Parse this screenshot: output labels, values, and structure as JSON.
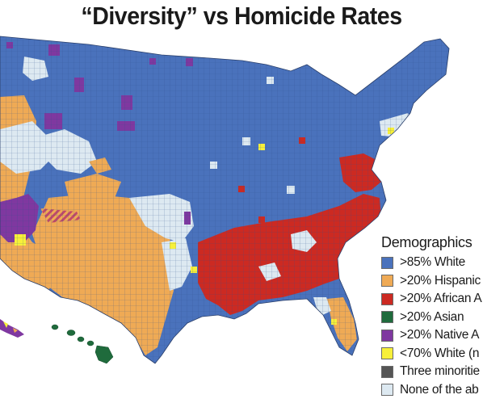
{
  "title": "“Diversity” vs Homicide Rates",
  "legend": {
    "title": "Demographics",
    "items": [
      {
        "label": ">85% White",
        "color": "#4a72bc"
      },
      {
        "label": ">20% Hispanic",
        "color": "#efaa55"
      },
      {
        "label": ">20% African A",
        "color": "#cc2a22"
      },
      {
        "label": ">20% Asian",
        "color": "#1f6b3c"
      },
      {
        "label": ">20% Native A",
        "color": "#7f38a0"
      },
      {
        "label": "<70% White (n",
        "color": "#f7f03a"
      },
      {
        "label": "Three minoritie",
        "color": "#555555"
      },
      {
        "label": "None of the ab",
        "color": "#dde9f1"
      }
    ]
  }
}
